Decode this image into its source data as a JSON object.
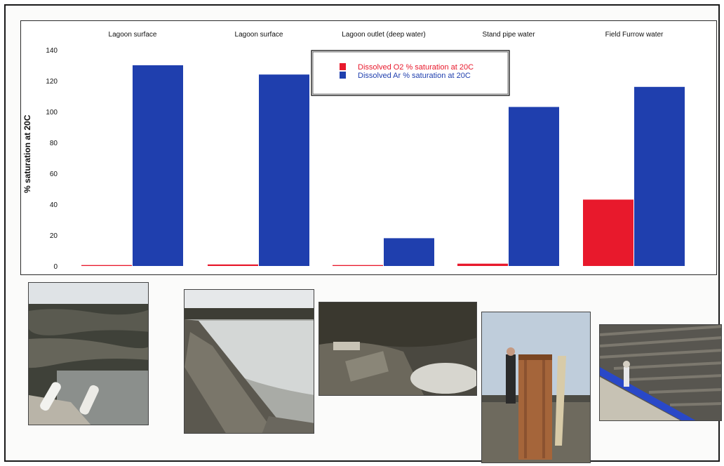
{
  "chart_data": {
    "type": "bar",
    "categories": [
      "Lagoon surface",
      "Lagoon surface",
      "Lagoon outlet (deep water)",
      "Stand pipe water",
      "Field Furrow water"
    ],
    "series": [
      {
        "name": "Dissolved O2 % saturation at 20C",
        "color": "#e8192c",
        "values": [
          0.6,
          1,
          0.6,
          1.5,
          43
        ]
      },
      {
        "name": "Dissolved Ar % saturation at 20C",
        "color": "#1f3fae",
        "values": [
          130,
          124,
          18,
          103,
          116
        ]
      }
    ],
    "ylabel": "% saturation at 20C",
    "ylim": [
      0,
      140
    ],
    "yticks": [
      0,
      20,
      40,
      60,
      80,
      100,
      120,
      140
    ],
    "legend_position": "top-center",
    "grid": false
  },
  "photos": [
    {
      "name": "lagoon-surface-pipes-photo"
    },
    {
      "name": "lagoon-surface-embankment-photo"
    },
    {
      "name": "lagoon-outlet-photo"
    },
    {
      "name": "stand-pipe-photo"
    },
    {
      "name": "field-furrow-photo"
    }
  ]
}
